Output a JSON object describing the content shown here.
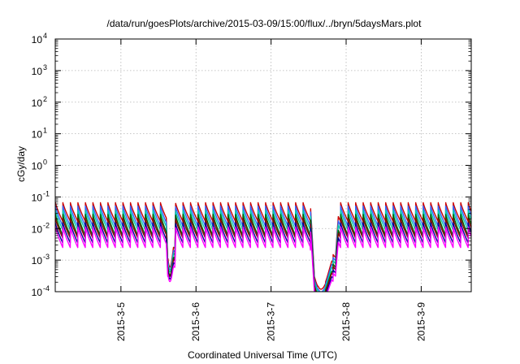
{
  "chart_data": {
    "type": "line",
    "title": "/data/run/goesPlots/archive/2015-03-09/15:00/flux/../bryn/5daysMars.plot",
    "xlabel": "Coordinated Universal Time (UTC)",
    "ylabel": "cGy/day",
    "xlim": [
      "2015-03-04 03:00",
      "2015-03-09 16:00"
    ],
    "ylim": [
      0.0001,
      10000
    ],
    "yscale": "log",
    "grid": true,
    "x_ticks": [
      "2015-3-5",
      "2015-3-6",
      "2015-3-7",
      "2015-3-8",
      "2015-3-9"
    ],
    "y_ticks": [
      {
        "base": "10",
        "exp": "-4",
        "value": 0.0001
      },
      {
        "base": "10",
        "exp": "-3",
        "value": 0.001
      },
      {
        "base": "10",
        "exp": "-2",
        "value": 0.01
      },
      {
        "base": "10",
        "exp": "-1",
        "value": 0.1
      },
      {
        "base": "10",
        "exp": "0",
        "value": 1
      },
      {
        "base": "10",
        "exp": "1",
        "value": 10
      },
      {
        "base": "10",
        "exp": "2",
        "value": 100
      },
      {
        "base": "10",
        "exp": "3",
        "value": 1000
      },
      {
        "base": "10",
        "exp": "4",
        "value": 10000
      }
    ],
    "sawtooth_period_hours": 2.4,
    "events": [
      {
        "start": "2015-03-05 14:30",
        "end": "2015-03-05 17:30",
        "min_value": 0.0006
      },
      {
        "start": "2015-03-07 12:30",
        "end": "2015-03-07 21:30",
        "min_value": 0.00012
      }
    ],
    "series": [
      {
        "color": "#cc0000",
        "peak": 0.07,
        "trough": 0.017
      },
      {
        "color": "#3366ff",
        "peak": 0.055,
        "trough": 0.012
      },
      {
        "color": "#00ccaa",
        "peak": 0.04,
        "trough": 0.009
      },
      {
        "color": "#006000",
        "peak": 0.03,
        "trough": 0.006
      },
      {
        "color": "#880000",
        "peak": 0.022,
        "trough": 0.005
      },
      {
        "color": "#000099",
        "peak": 0.016,
        "trough": 0.0035
      },
      {
        "color": "#ff00ff",
        "peak": 0.012,
        "trough": 0.0025
      }
    ]
  }
}
